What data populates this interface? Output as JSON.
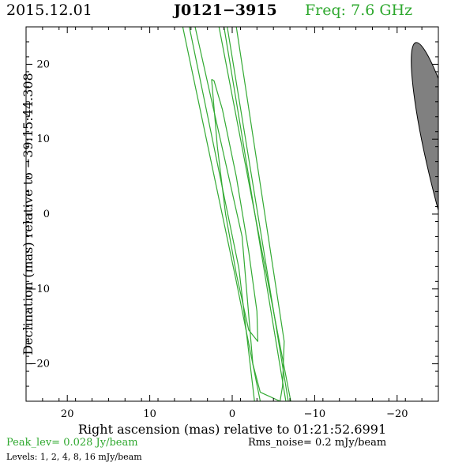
{
  "header": {
    "date": "2015.12.01",
    "source": "J0121−3915",
    "frequency": "Freq: 7.6 GHz"
  },
  "footer": {
    "peak_level": "Peak_lev=  0.028 Jy/beam",
    "rms_noise": "Rms_noise=   0.2 mJy/beam",
    "levels": "Levels:   1,   2,   4,   8,  16 mJy/beam"
  },
  "colors": {
    "contour": "#33aa33",
    "beam_fill": "#808080",
    "header_accent": "#2ea82e"
  },
  "chart_data": {
    "type": "contour",
    "xlabel": "Right ascension (mas) relative to 01:21:52.6991",
    "ylabel": "Declination (mas) relative to −39:15:44.308",
    "xlim": [
      25,
      -25
    ],
    "ylim": [
      -25,
      25
    ],
    "xticks": [
      20,
      10,
      0,
      -10,
      -20
    ],
    "xtick_labels": [
      "20",
      "10",
      "0",
      "−10",
      "−20"
    ],
    "yticks": [
      20,
      10,
      0,
      -10,
      -20
    ],
    "ytick_labels": [
      "20",
      "10",
      "0",
      "−10",
      "−20"
    ],
    "contour_levels_mJy": [
      1,
      2,
      4,
      8,
      16
    ],
    "contours": [
      {
        "level": 1,
        "name": "contour-level-1",
        "segments": [
          [
            [
              6.0,
              25.0
            ],
            [
              -0.5,
              -9.0
            ],
            [
              -3.4,
              -25.0
            ]
          ],
          [
            [
              1.6,
              25.0
            ],
            [
              -7.1,
              -25.0
            ]
          ]
        ]
      },
      {
        "level": 2,
        "name": "contour-level-2",
        "segments": [
          [
            [
              5.2,
              25.0
            ],
            [
              -0.8,
              -7.2
            ],
            [
              -2.7,
              -25.0
            ]
          ],
          [
            [
              1.0,
              25.0
            ],
            [
              -6.5,
              -25.0
            ]
          ]
        ]
      },
      {
        "level": 4,
        "name": "contour-level-4",
        "segments": [
          [
            [
              4.5,
              25.0
            ],
            [
              -1.2,
              -3.0
            ],
            [
              -2.5,
              -20.0
            ],
            [
              -3.4,
              -23.8
            ],
            [
              -5.8,
              -25.0
            ]
          ],
          [
            [
              -0.5,
              25.0
            ],
            [
              -6.3,
              -17.0
            ],
            [
              -6.1,
              -23.0
            ],
            [
              -5.8,
              -25.0
            ]
          ]
        ]
      },
      {
        "level": 8,
        "name": "contour-level-8",
        "segments": [
          [
            [
              0.6,
              25.0
            ],
            [
              -6.8,
              -25.0
            ]
          ]
        ]
      },
      {
        "level": 16,
        "name": "contour-level-16",
        "segments": [
          [
            [
              2.5,
              18.0
            ],
            [
              1.8,
              9.0
            ],
            [
              0.8,
              0.0
            ],
            [
              -0.5,
              -8.0
            ],
            [
              -2.0,
              -15.5
            ],
            [
              -3.1,
              -17.0
            ],
            [
              -3.0,
              -13.0
            ],
            [
              -2.0,
              -5.0
            ],
            [
              -0.5,
              5.0
            ],
            [
              1.2,
              14.0
            ],
            [
              2.2,
              17.8
            ],
            [
              2.5,
              18.0
            ]
          ]
        ]
      }
    ],
    "beam": {
      "center": [
        -26.5,
        4.2
      ],
      "major_mas": 35,
      "minor_mas": 4.6,
      "position_angle_deg": -14
    },
    "grid": false
  }
}
